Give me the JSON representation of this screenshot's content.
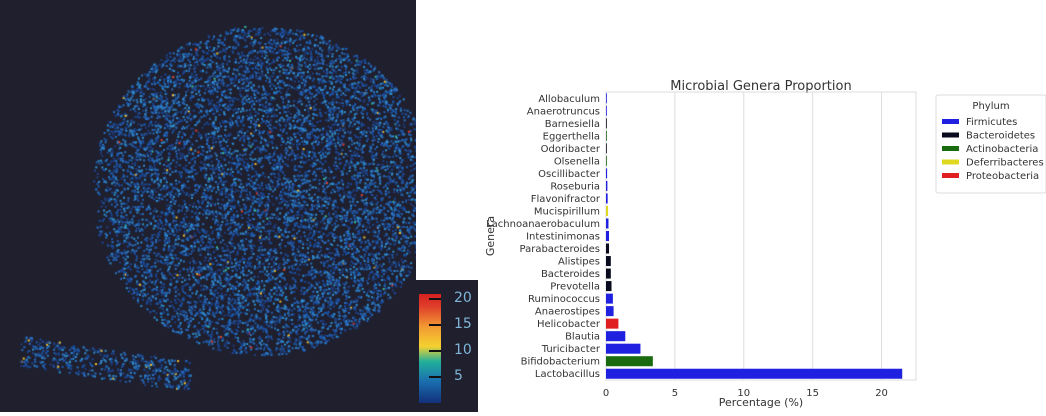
{
  "embedding": {
    "colorbar": {
      "min": 0,
      "max": 20,
      "ticks": [
        "20",
        "15",
        "10",
        "5"
      ],
      "tick_values": [
        20,
        15,
        10,
        5
      ]
    }
  },
  "chart_data": {
    "type": "bar",
    "orientation": "horizontal",
    "title": "Microbial Genera Proportion",
    "xlabel": "Percentage (%)",
    "ylabel": "Genera",
    "xlim": [
      0,
      22.5
    ],
    "xticks": [
      0,
      5,
      10,
      15,
      20
    ],
    "grid": "vertical",
    "legend": {
      "title": "Phylum",
      "placement": "outside-right",
      "entries": [
        {
          "name": "Firmicutes",
          "color": "#2020e0"
        },
        {
          "name": "Bacteroidetes",
          "color": "#0a0a1e"
        },
        {
          "name": "Actinobacteria",
          "color": "#1a6a10"
        },
        {
          "name": "Deferribacteres",
          "color": "#e0d820"
        },
        {
          "name": "Proteobacteria",
          "color": "#e02020"
        }
      ]
    },
    "categories": [
      "Allobaculum",
      "Anaerotruncus",
      "Barnesiella",
      "Eggerthella",
      "Odoribacter",
      "Olsenella",
      "Oscillibacter",
      "Roseburia",
      "Flavonifractor",
      "Mucispirillum",
      "Lachnoanaerobaculum",
      "Intestinimonas",
      "Parabacteroides",
      "Alistipes",
      "Bacteroides",
      "Prevotella",
      "Ruminococcus",
      "Anaerostipes",
      "Helicobacter",
      "Blautia",
      "Turicibacter",
      "Bifidobacterium",
      "Lactobacillus"
    ],
    "values": [
      0.02,
      0.02,
      0.03,
      0.03,
      0.04,
      0.06,
      0.08,
      0.1,
      0.12,
      0.15,
      0.18,
      0.22,
      0.22,
      0.35,
      0.35,
      0.4,
      0.5,
      0.55,
      0.9,
      1.4,
      2.5,
      3.4,
      21.5
    ],
    "phylum": [
      "Firmicutes",
      "Firmicutes",
      "Bacteroidetes",
      "Actinobacteria",
      "Bacteroidetes",
      "Actinobacteria",
      "Firmicutes",
      "Firmicutes",
      "Firmicutes",
      "Deferribacteres",
      "Firmicutes",
      "Firmicutes",
      "Bacteroidetes",
      "Bacteroidetes",
      "Bacteroidetes",
      "Bacteroidetes",
      "Firmicutes",
      "Firmicutes",
      "Proteobacteria",
      "Firmicutes",
      "Firmicutes",
      "Actinobacteria",
      "Firmicutes"
    ]
  }
}
